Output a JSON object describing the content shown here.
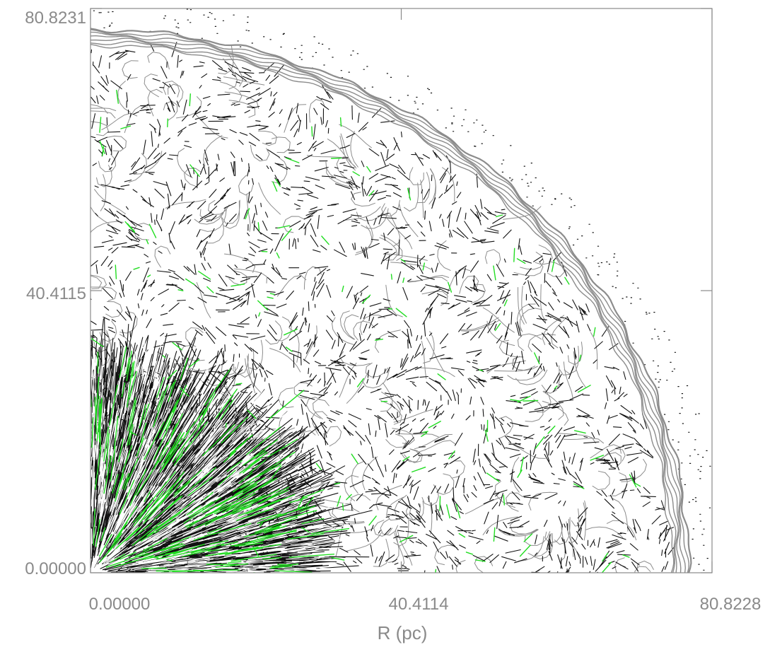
{
  "chart_data": {
    "type": "vector-field",
    "title": "",
    "xlabel": "R (pc)",
    "ylabel": "",
    "xlim": [
      0.0,
      80.8228
    ],
    "ylim": [
      0.0,
      80.8231
    ],
    "xticks": [
      "0.00000",
      "40.4114",
      "80.8228"
    ],
    "xtick_values": [
      0.0,
      40.4114,
      80.8228
    ],
    "yticks": [
      "0.00000",
      "40.4115",
      "80.8231"
    ],
    "ytick_values": [
      0.0,
      40.4115,
      80.8231
    ],
    "grid": false,
    "legend": "none",
    "shell_outer_radius": 77.8,
    "shell_thickness": 2.2,
    "inner_radial_region_radius": 27.0,
    "series": [
      {
        "role": "velocity-vectors",
        "color": "#111111"
      },
      {
        "role": "highlighted-vectors",
        "color": "#22dd22"
      },
      {
        "role": "density-contours",
        "color": "#8c8c8c"
      }
    ]
  }
}
